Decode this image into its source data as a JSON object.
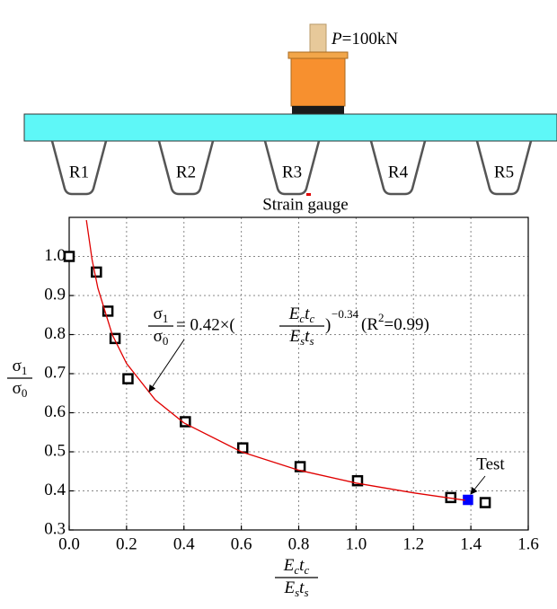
{
  "diagram": {
    "load_label": [
      "P",
      "=100kN"
    ],
    "ribs": [
      "R1",
      "R2",
      "R3",
      "R4",
      "R5"
    ],
    "gauge_label": "Strain gauge"
  },
  "chart_data": {
    "type": "scatter",
    "xlim": [
      0,
      1.6
    ],
    "xticks": [
      {
        "value": 0,
        "label": "0.0"
      },
      0.2,
      0.4,
      0.6,
      0.8,
      {
        "value": 1,
        "label": "1.0"
      },
      1.2,
      1.4,
      1.6
    ],
    "ylim": [
      0.3,
      1.1
    ],
    "yticks": [
      0.3,
      0.4,
      0.5,
      0.6,
      0.7,
      0.8,
      0.9,
      {
        "value": 1,
        "label": "1.0"
      }
    ],
    "grid": true,
    "series": [
      {
        "marker": "square-open",
        "color": "#000000",
        "x": [
          0.0,
          0.095,
          0.135,
          0.16,
          0.205,
          0.405,
          0.605,
          0.805,
          1.005,
          1.33,
          1.45
        ],
        "values": [
          1.0,
          0.96,
          0.86,
          0.79,
          0.687,
          0.577,
          0.51,
          0.462,
          0.426,
          0.383,
          0.37
        ]
      },
      {
        "marker": "square-filled",
        "color": "#0000ff",
        "x": [
          1.39
        ],
        "values": [
          0.377
        ]
      },
      {
        "marker": "line",
        "color": "#e00000",
        "x": [
          0.06,
          0.08,
          0.1,
          0.15,
          0.2,
          0.3,
          0.4,
          0.6,
          0.8,
          1.0,
          1.2,
          1.38
        ],
        "values": [
          1.093,
          0.991,
          0.919,
          0.8,
          0.726,
          0.633,
          0.574,
          0.5,
          0.453,
          0.42,
          0.395,
          0.376
        ]
      }
    ],
    "test_label": "Test",
    "equation": {
      "lhs_num": [
        "σ",
        "1"
      ],
      "lhs_den": [
        "σ",
        "0"
      ],
      "body": "= 0.42×(",
      "rhs_num": [
        "E",
        "c",
        "t",
        "c"
      ],
      "rhs_den": [
        "E",
        "s",
        "t",
        "s"
      ],
      "close": ")",
      "exponent": "−0.34",
      "r2": [
        "(R",
        "2",
        "=0.99)"
      ]
    },
    "x_label": {
      "numerator": [
        "E",
        "c",
        "t",
        "c"
      ],
      "denominator": [
        "E",
        "s",
        "t",
        "s"
      ]
    },
    "y_label": {
      "numerator": [
        "σ",
        "1"
      ],
      "denominator": [
        "σ",
        "0"
      ]
    }
  }
}
